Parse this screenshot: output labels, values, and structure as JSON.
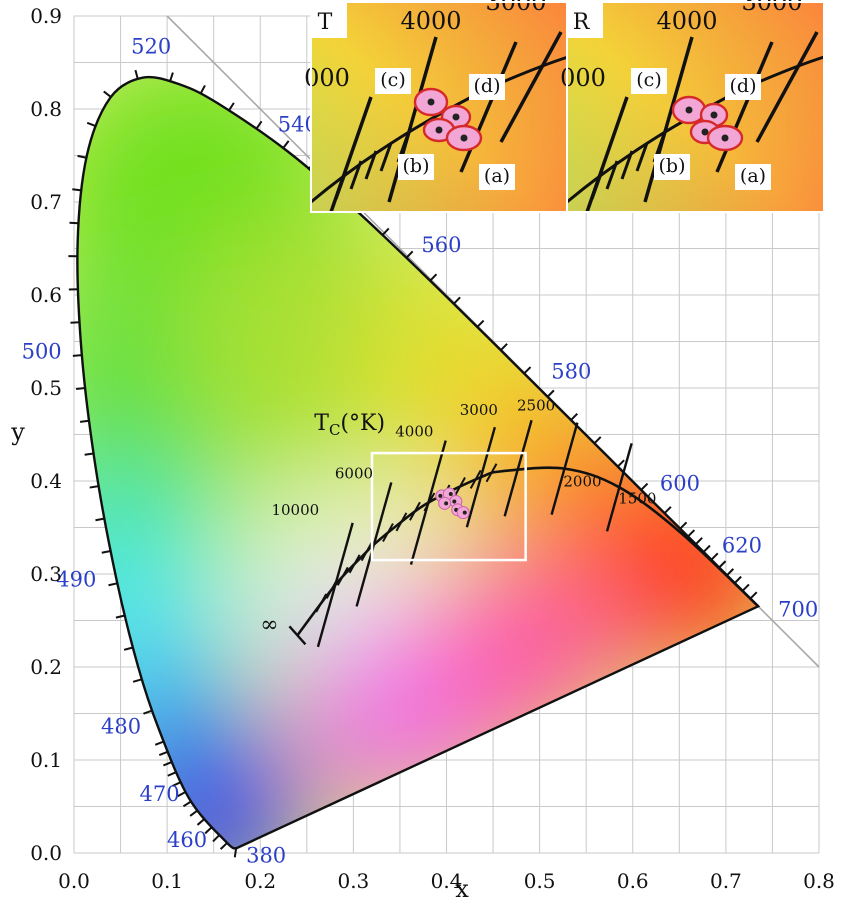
{
  "chart_data": {
    "type": "scatter",
    "title": "",
    "xlabel": "x",
    "ylabel": "y",
    "xlim": [
      0,
      0.8
    ],
    "ylim": [
      0,
      0.9
    ],
    "x_ticks": [
      "0.0",
      "0.1",
      "0.2",
      "0.3",
      "0.4",
      "0.5",
      "0.6",
      "0.7",
      "0.8"
    ],
    "y_ticks": [
      "0.0",
      "0.1",
      "0.2",
      "0.3",
      "0.4",
      "0.5",
      "0.6",
      "0.7",
      "0.8",
      "0.9"
    ],
    "grid": true,
    "spectral_locus": [
      {
        "x": 0.1741,
        "y": 0.005,
        "label": "380"
      },
      {
        "x": 0.1644,
        "y": 0.0109,
        "label": "460"
      },
      {
        "x": 0.1241,
        "y": 0.0578,
        "label": "470"
      },
      {
        "x": 0.0913,
        "y": 0.1327,
        "label": "480"
      },
      {
        "x": 0.0687,
        "y": 0.2007
      },
      {
        "x": 0.0454,
        "y": 0.295,
        "label": "490"
      },
      {
        "x": 0.0235,
        "y": 0.4127
      },
      {
        "x": 0.0082,
        "y": 0.5384,
        "label": "500"
      },
      {
        "x": 0.0039,
        "y": 0.6548
      },
      {
        "x": 0.0139,
        "y": 0.7502
      },
      {
        "x": 0.0389,
        "y": 0.812
      },
      {
        "x": 0.0743,
        "y": 0.8338,
        "label": "520"
      },
      {
        "x": 0.1142,
        "y": 0.8262
      },
      {
        "x": 0.1547,
        "y": 0.8059
      },
      {
        "x": 0.2296,
        "y": 0.7543,
        "label": "540"
      },
      {
        "x": 0.3016,
        "y": 0.6923
      },
      {
        "x": 0.3731,
        "y": 0.6245,
        "label": "560"
      },
      {
        "x": 0.4441,
        "y": 0.5547
      },
      {
        "x": 0.5125,
        "y": 0.4866,
        "label": "580"
      },
      {
        "x": 0.5752,
        "y": 0.4242
      },
      {
        "x": 0.627,
        "y": 0.3725,
        "label": "600"
      },
      {
        "x": 0.6658,
        "y": 0.334
      },
      {
        "x": 0.6915,
        "y": 0.3083,
        "label": "620"
      },
      {
        "x": 0.714,
        "y": 0.2859
      },
      {
        "x": 0.7347,
        "y": 0.2653,
        "label": "700"
      }
    ],
    "planckian_locus": [
      {
        "x": 0.2399,
        "y": 0.2341
      },
      {
        "x": 0.2806,
        "y": 0.2883
      },
      {
        "x": 0.3138,
        "y": 0.3236
      },
      {
        "x": 0.3221,
        "y": 0.3318
      },
      {
        "x": 0.346,
        "y": 0.3516
      },
      {
        "x": 0.3805,
        "y": 0.3768
      },
      {
        "x": 0.4369,
        "y": 0.4041
      },
      {
        "x": 0.461,
        "y": 0.4106
      },
      {
        "x": 0.5267,
        "y": 0.4133
      },
      {
        "x": 0.5856,
        "y": 0.3932
      },
      {
        "x": 0.652,
        "y": 0.344
      },
      {
        "x": 0.7347,
        "y": 0.2653
      }
    ],
    "isotherms": [
      {
        "label": "∞",
        "x": 0.2399,
        "y": 0.2341
      },
      {
        "label": "10000",
        "x": 0.2806,
        "y": 0.2883
      },
      {
        "label": "6000",
        "x": 0.3221,
        "y": 0.3318
      },
      {
        "label": "4000",
        "x": 0.3805,
        "y": 0.3768
      },
      {
        "label": "3000",
        "x": 0.4369,
        "y": 0.4041
      },
      {
        "label": "2500",
        "x": 0.4769,
        "y": 0.4137
      },
      {
        "label": "2000",
        "x": 0.5267,
        "y": 0.4133
      },
      {
        "label": "1500",
        "x": 0.5856,
        "y": 0.3932
      }
    ],
    "axis_title_tc": "TC(°K)",
    "series": [
      {
        "values": [
          {
            "x": 0.395,
            "y": 0.384
          },
          {
            "x": 0.403,
            "y": 0.386
          },
          {
            "x": 0.41,
            "y": 0.378
          },
          {
            "x": 0.398,
            "y": 0.376
          },
          {
            "x": 0.412,
            "y": 0.369
          },
          {
            "x": 0.418,
            "y": 0.366
          }
        ]
      }
    ],
    "zoom_box": {
      "xlim": [
        0.32,
        0.485
      ],
      "ylim": [
        0.315,
        0.43
      ]
    },
    "insets": [
      {
        "title": "T",
        "labels": [
          "4000",
          "3000",
          "000",
          "(c)",
          "(d)",
          "(b)",
          "(a)"
        ]
      },
      {
        "title": "R",
        "labels": [
          "4000",
          "3000",
          "000",
          "(c)",
          "(d)",
          "(b)",
          "(a)"
        ]
      }
    ]
  },
  "colors": {
    "wavelength_label": "#2b3fc7",
    "sample_fill": "#f2a6d6",
    "sample_ring": "#d62a2a",
    "zoom_box": "#ffffff"
  }
}
